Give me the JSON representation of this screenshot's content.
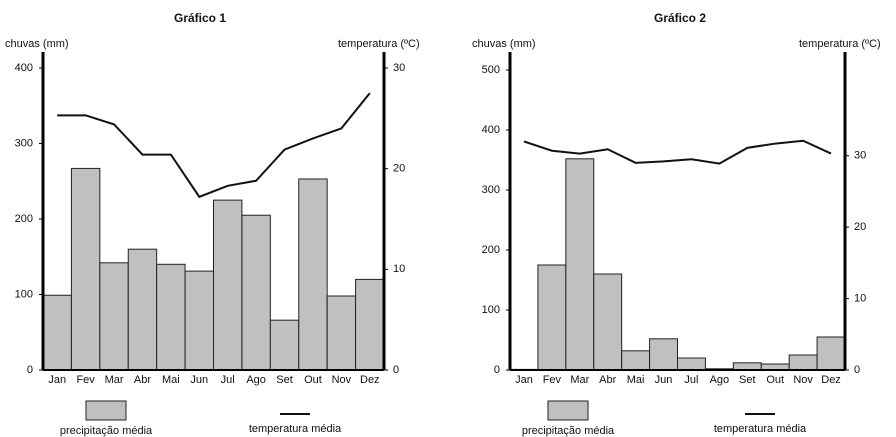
{
  "chart_data": [
    {
      "type": "combo",
      "title": "Gráfico 1",
      "y_label": "chuvas (mm)",
      "y2_label": "temperatura (ºC)",
      "categories": [
        "Jan",
        "Fev",
        "Mar",
        "Abr",
        "Mai",
        "Jun",
        "Jul",
        "Ago",
        "Set",
        "Out",
        "Nov",
        "Dez"
      ],
      "ylim": [
        0,
        400
      ],
      "yticks": [
        0,
        100,
        200,
        300,
        400
      ],
      "y2lim": [
        0,
        30
      ],
      "y2ticks": [
        0,
        10,
        20,
        30
      ],
      "series": [
        {
          "name": "precipitação média",
          "type": "bar",
          "color": "#c0c0c0",
          "values": [
            99,
            267,
            142,
            160,
            140,
            131,
            225,
            205,
            66,
            253,
            98,
            120
          ]
        },
        {
          "name": "temperatura média",
          "type": "line",
          "axis": "y2",
          "color": "#111111",
          "values": [
            25.3,
            25.3,
            24.4,
            21.4,
            21.4,
            17.2,
            18.3,
            18.8,
            21.9,
            23.0,
            24.0,
            27.5
          ]
        }
      ]
    },
    {
      "type": "combo",
      "title": "Gráfico 2",
      "y_label": "chuvas (mm)",
      "y2_label": "temperatura (ºC)",
      "categories": [
        "Jan",
        "Fev",
        "Mar",
        "Abr",
        "Mai",
        "Jun",
        "Jul",
        "Ago",
        "Set",
        "Out",
        "Nov",
        "Dez"
      ],
      "ylim": [
        0,
        500
      ],
      "yticks": [
        0,
        100,
        200,
        300,
        400,
        500
      ],
      "y2lim": [
        0,
        42
      ],
      "y2ticks": [
        0,
        10,
        20,
        30
      ],
      "series": [
        {
          "name": "precipitação média",
          "type": "bar",
          "color": "#c0c0c0",
          "values": [
            1,
            175,
            352,
            160,
            32,
            52,
            20,
            2,
            12,
            10,
            25,
            55
          ]
        },
        {
          "name": "temperatura média",
          "type": "line",
          "axis": "y2",
          "color": "#111111",
          "values": [
            32.0,
            30.7,
            30.3,
            30.9,
            29.0,
            29.2,
            29.5,
            28.9,
            31.1,
            31.7,
            32.1,
            30.3
          ]
        }
      ]
    }
  ]
}
